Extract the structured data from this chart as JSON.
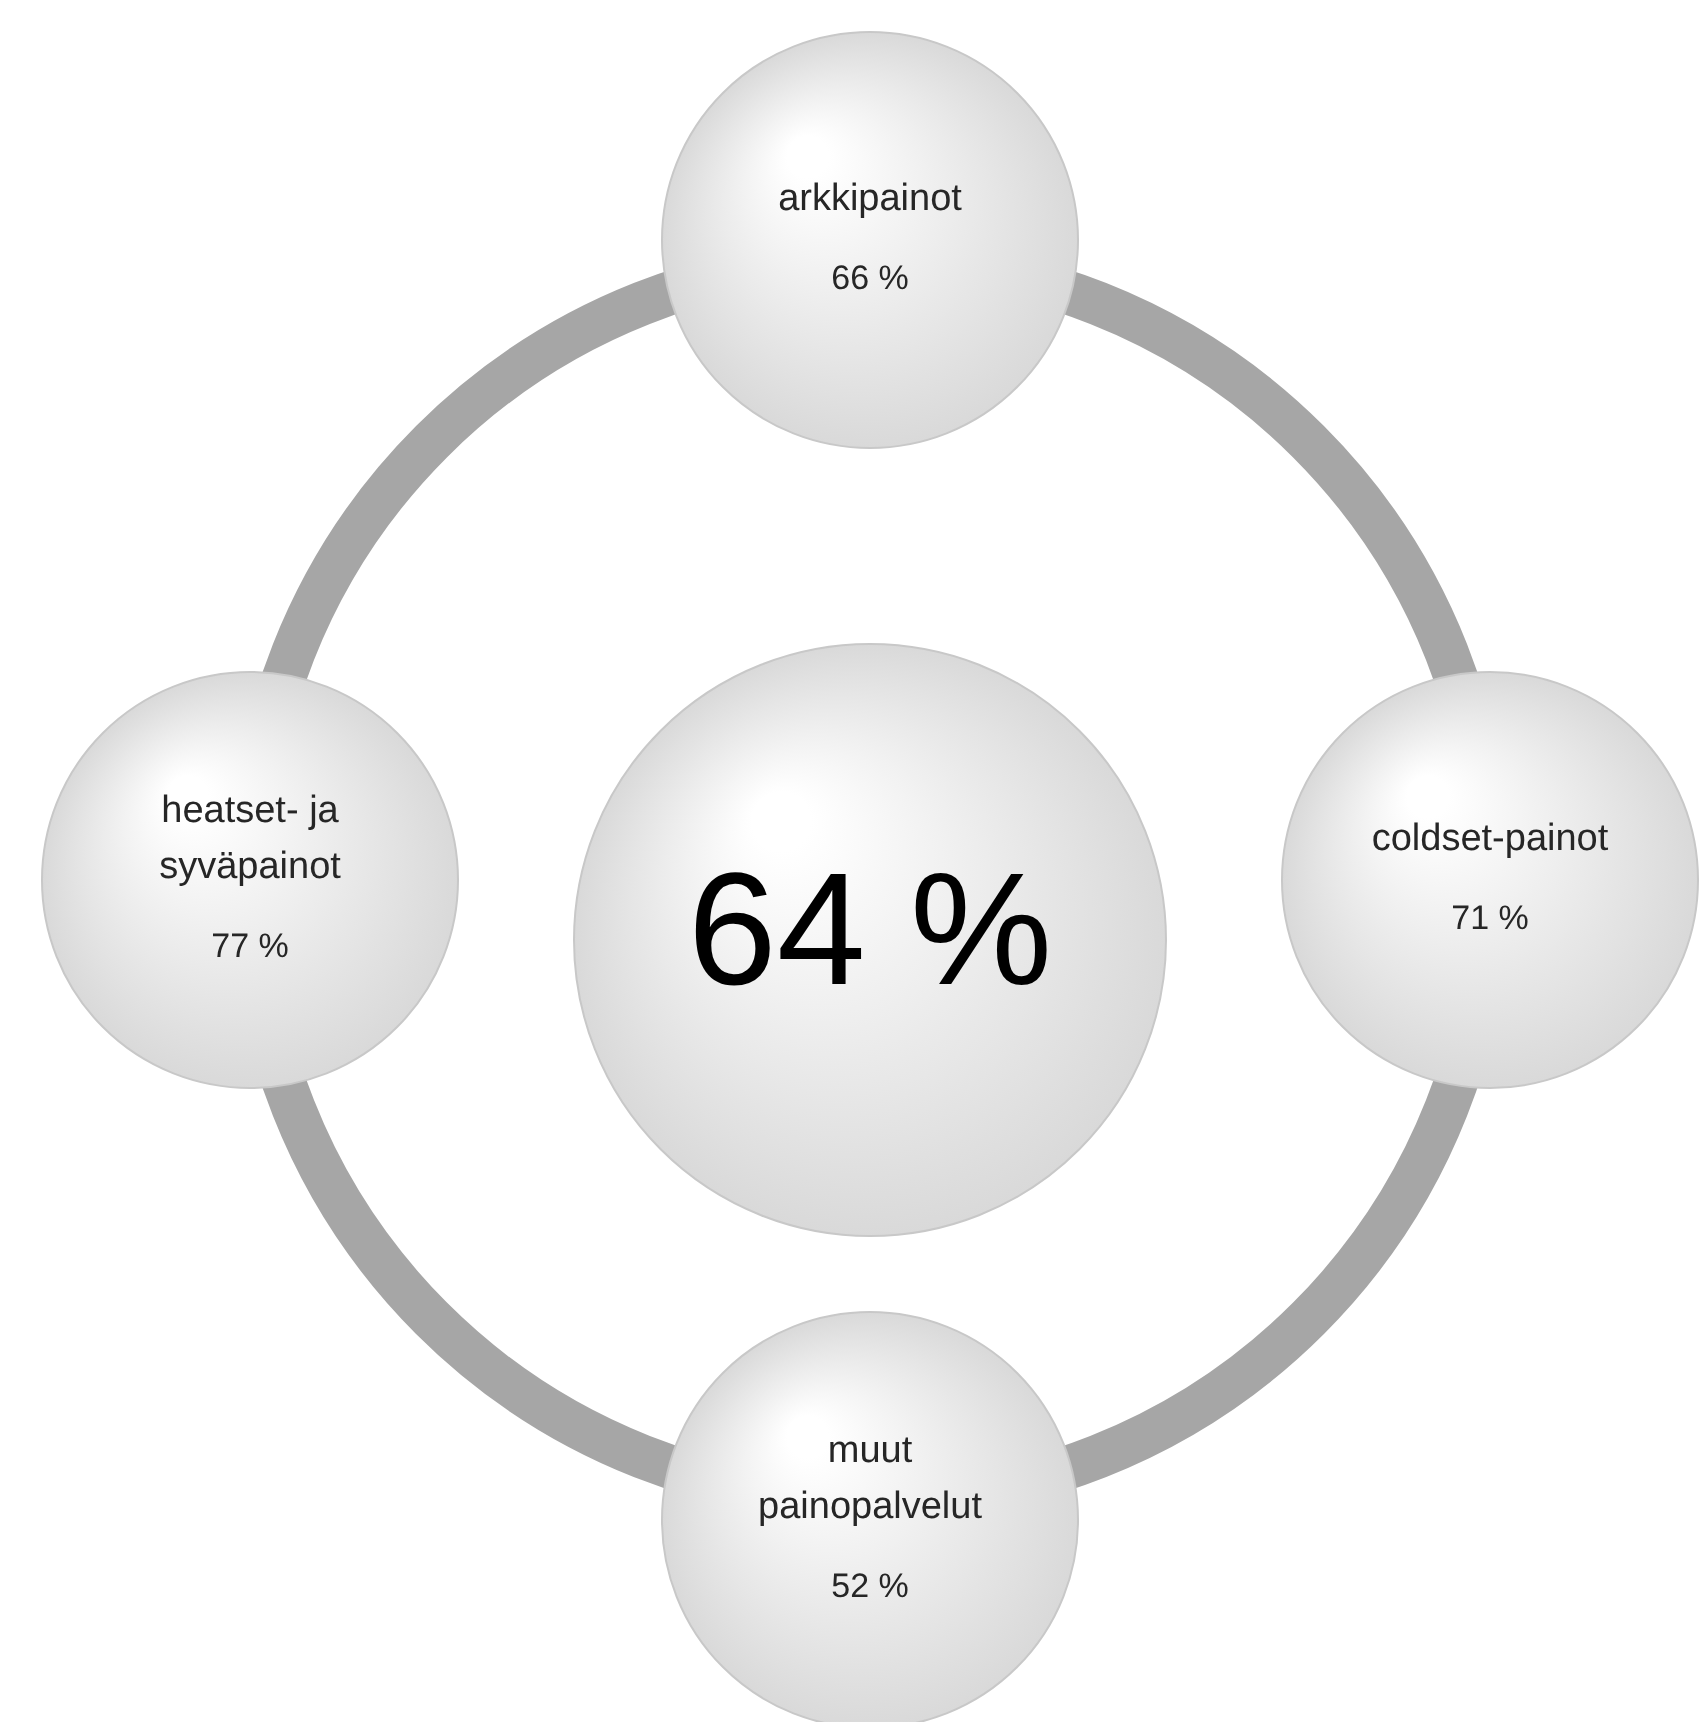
{
  "chart_data": {
    "type": "other",
    "categories": [
      "arkkipainot",
      "coldset-painot",
      "muut painopalvelut",
      "heatset- ja syväpainot"
    ],
    "values": [
      66,
      71,
      52,
      77
    ],
    "value_labels": [
      "66 %",
      "71 %",
      "52 %",
      "77 %"
    ],
    "annotations": [
      "64 %"
    ]
  }
}
